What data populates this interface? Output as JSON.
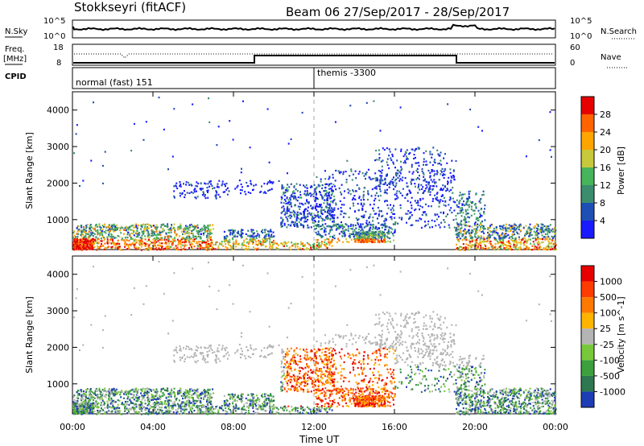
{
  "header": {
    "station": "Stokkseyri (fitACF)",
    "beam_date": "Beam 06  27/Sep/2017 - 28/Sep/2017"
  },
  "noise_panel": {
    "left_label": "N.Sky",
    "left_ticks": [
      "10^5",
      "10^0"
    ],
    "right_ticks": [
      "10^5",
      "10^0"
    ],
    "right_label": "N.Search"
  },
  "freq_panel": {
    "left_label_1": "Freq.",
    "left_label_2": "[MHz]",
    "left_ticks": [
      "18",
      "8"
    ],
    "right_ticks": [
      "60",
      "0"
    ],
    "right_label": "Nave"
  },
  "cpid_panel": {
    "label": "CPID",
    "mode_1": "normal (fast) 151",
    "mode_2": "themis -3300"
  },
  "axes": {
    "ylabel": "Slant Range [km]",
    "xlabel": "Time UT",
    "yticks": [
      "1000",
      "2000",
      "3000",
      "4000"
    ],
    "xticks": [
      "00:00",
      "04:00",
      "08:00",
      "12:00",
      "16:00",
      "20:00",
      "00:00"
    ]
  },
  "power_scale": {
    "label": "Power [dB]",
    "ticks": [
      "4",
      "8",
      "12",
      "16",
      "20",
      "24",
      "28"
    ],
    "colors": [
      "#1a1aff",
      "#1e4fb4",
      "#3c8c6e",
      "#46b45a",
      "#c8c83c",
      "#ffa500",
      "#ff6400",
      "#e60000"
    ]
  },
  "velocity_scale": {
    "label": "Velocity [m s^-1]",
    "ticks": [
      "1000",
      "500",
      "100",
      "25",
      "-25",
      "-100",
      "-500",
      "-1000"
    ],
    "colors": [
      "#1e3cb4",
      "#2d7850",
      "#3ca03c",
      "#78c83c",
      "#b4b4b4",
      "#ffb400",
      "#ff7800",
      "#ff3c00",
      "#e60000"
    ]
  },
  "chart_data": {
    "type": "heatmap",
    "x_range_hours": [
      0,
      24
    ],
    "y_range_km": [
      180,
      4500
    ],
    "series": [
      {
        "name": "Power [dB]",
        "color_scale": "power_scale"
      },
      {
        "name": "Velocity [m s^-1]",
        "color_scale": "velocity_scale"
      }
    ]
  }
}
